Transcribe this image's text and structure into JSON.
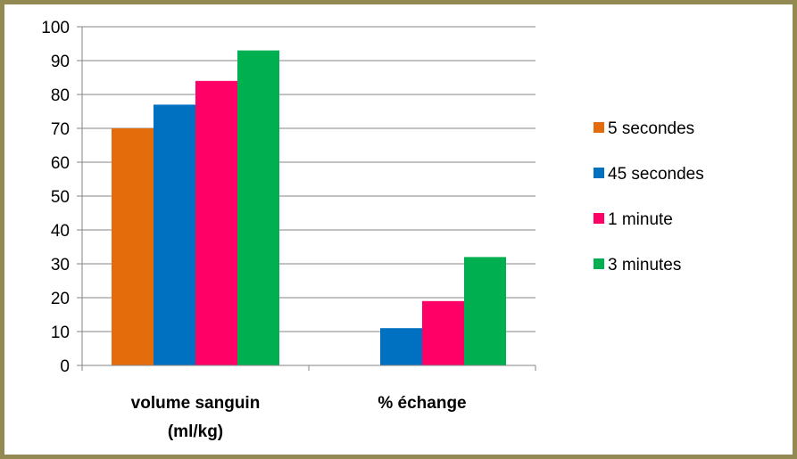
{
  "chart_data": {
    "type": "bar",
    "title": "",
    "xlabel": "",
    "ylabel": "",
    "categories": [
      [
        "volume sanguin",
        "(ml/kg)"
      ],
      [
        "% échange"
      ]
    ],
    "series": [
      {
        "name": "5 secondes",
        "color": "#E46C0A",
        "values": [
          70,
          null
        ]
      },
      {
        "name": "45 secondes",
        "color": "#0070C0",
        "values": [
          77,
          11
        ]
      },
      {
        "name": "1 minute",
        "color": "#FF0066",
        "values": [
          84,
          19
        ]
      },
      {
        "name": "3 minutes",
        "color": "#00B050",
        "values": [
          93,
          32
        ]
      }
    ],
    "ylim": [
      0,
      100
    ],
    "yticks": [
      0,
      10,
      20,
      30,
      40,
      50,
      60,
      70,
      80,
      90,
      100
    ],
    "grid": true,
    "legend_position": "right",
    "frame_color": "#938953",
    "grid_color": "#868686"
  }
}
